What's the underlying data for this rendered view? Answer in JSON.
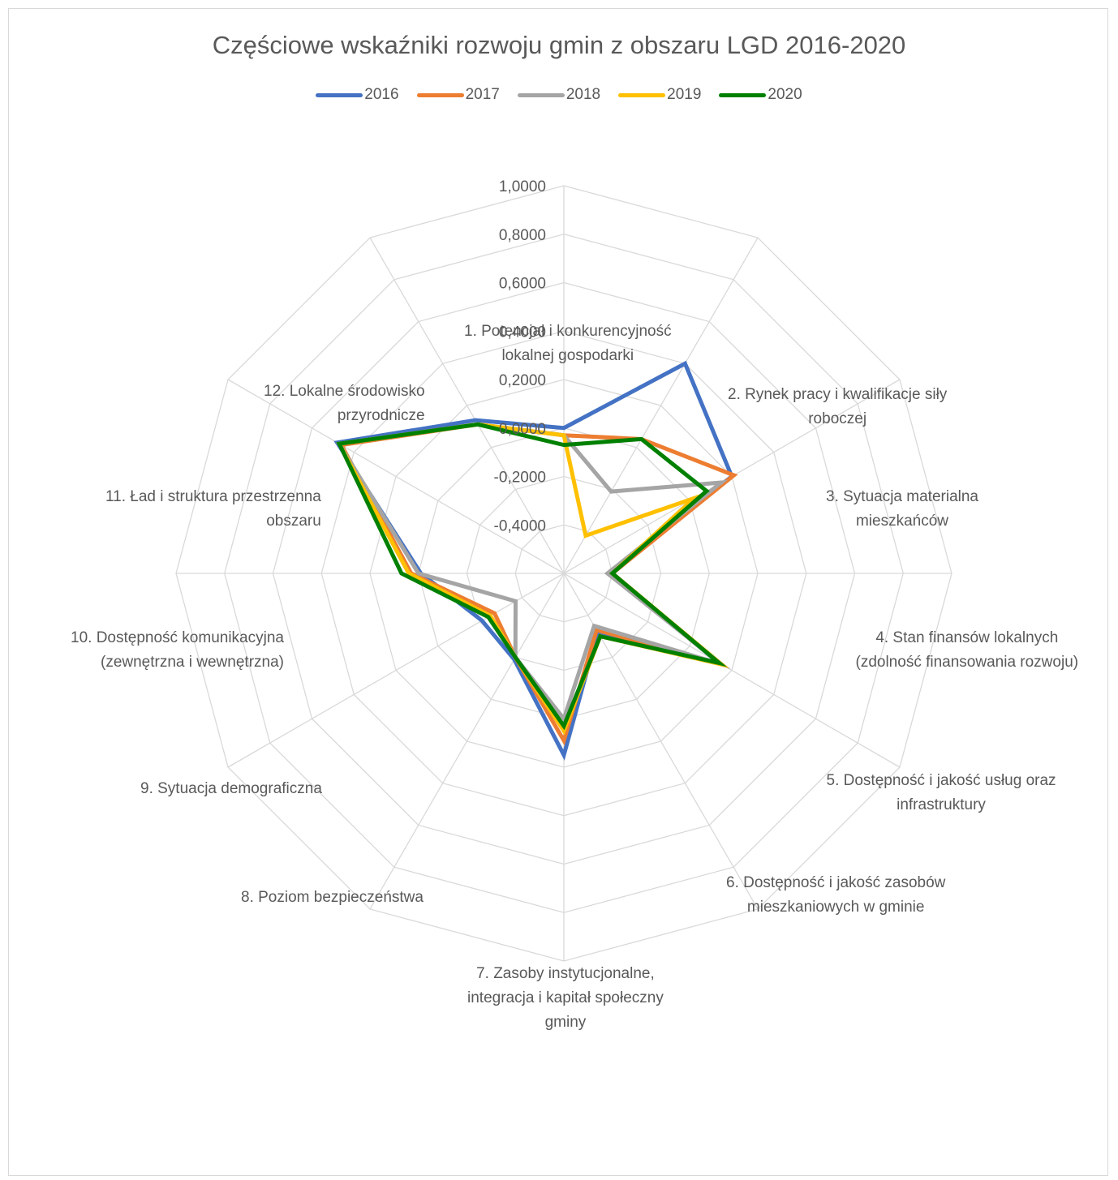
{
  "chart_data": {
    "type": "radar",
    "title": "Częściowe wskaźniki rozwoju gmin z obszaru LGD 2016-2020",
    "categories": [
      [
        "1. Potencjał i konkurencyjność",
        "lokalnej gospodarki"
      ],
      [
        "2. Rynek pracy i kwalifikacje siły",
        "roboczej"
      ],
      [
        "3. Sytuacja materialna",
        "mieszkańców"
      ],
      [
        "4. Stan finansów lokalnych",
        "(zdolność finansowania rozwoju)"
      ],
      [
        "5. Dostępność i jakość usług oraz",
        "infrastruktury"
      ],
      [
        "6. Dostępność i jakość zasobów",
        "mieszkaniowych w gminie"
      ],
      [
        "7. Zasoby instytucjonalne,",
        "integracja i kapitał społeczny",
        "gminy"
      ],
      [
        "8. Poziom bezpieczeństwa"
      ],
      [
        "9. Sytuacja demograficzna"
      ],
      [
        "10. Dostępność komunikacyjna",
        "(zewnętrzna i wewnętrzna)"
      ],
      [
        "11. Ład i struktura przestrzenna",
        "obszaru"
      ],
      [
        "12. Lokalne środowisko",
        "przyrodnicze"
      ]
    ],
    "axis": {
      "min": -0.6,
      "max": 1.0,
      "ticks": [
        1.0,
        0.8,
        0.6,
        0.4,
        0.2,
        0.0,
        -0.2,
        -0.4
      ],
      "tick_labels": [
        "1,0000",
        "0,8000",
        "0,6000",
        "0,4000",
        "0,2000",
        "0,0000",
        "-0,2000",
        "-0,4000"
      ]
    },
    "legend_position": "top",
    "series": [
      {
        "name": "2016",
        "color": "#4472C4",
        "values": [
          0.0,
          0.4,
          0.2,
          -0.41,
          0.14,
          -0.32,
          0.15,
          -0.19,
          -0.21,
          -0.01,
          0.48,
          0.13
        ]
      },
      {
        "name": "2017",
        "color": "#ED7D31",
        "values": [
          -0.03,
          0.04,
          0.21,
          -0.4,
          0.15,
          -0.33,
          0.09,
          -0.2,
          -0.27,
          0.03,
          0.46,
          0.11
        ]
      },
      {
        "name": "2018",
        "color": "#A5A5A5",
        "values": [
          -0.03,
          -0.21,
          0.15,
          -0.42,
          0.15,
          -0.35,
          0.0,
          -0.2,
          -0.37,
          0.0,
          0.47,
          0.11
        ]
      },
      {
        "name": "2019",
        "color": "#FFC000",
        "values": [
          -0.03,
          -0.42,
          0.02,
          -0.4,
          0.15,
          -0.3,
          0.05,
          -0.2,
          -0.25,
          0.04,
          0.47,
          0.11
        ]
      },
      {
        "name": "2020",
        "color": "#008000",
        "values": [
          -0.07,
          0.04,
          0.08,
          -0.4,
          0.14,
          -0.3,
          0.03,
          -0.2,
          -0.24,
          0.07,
          0.47,
          0.11
        ]
      }
    ]
  }
}
